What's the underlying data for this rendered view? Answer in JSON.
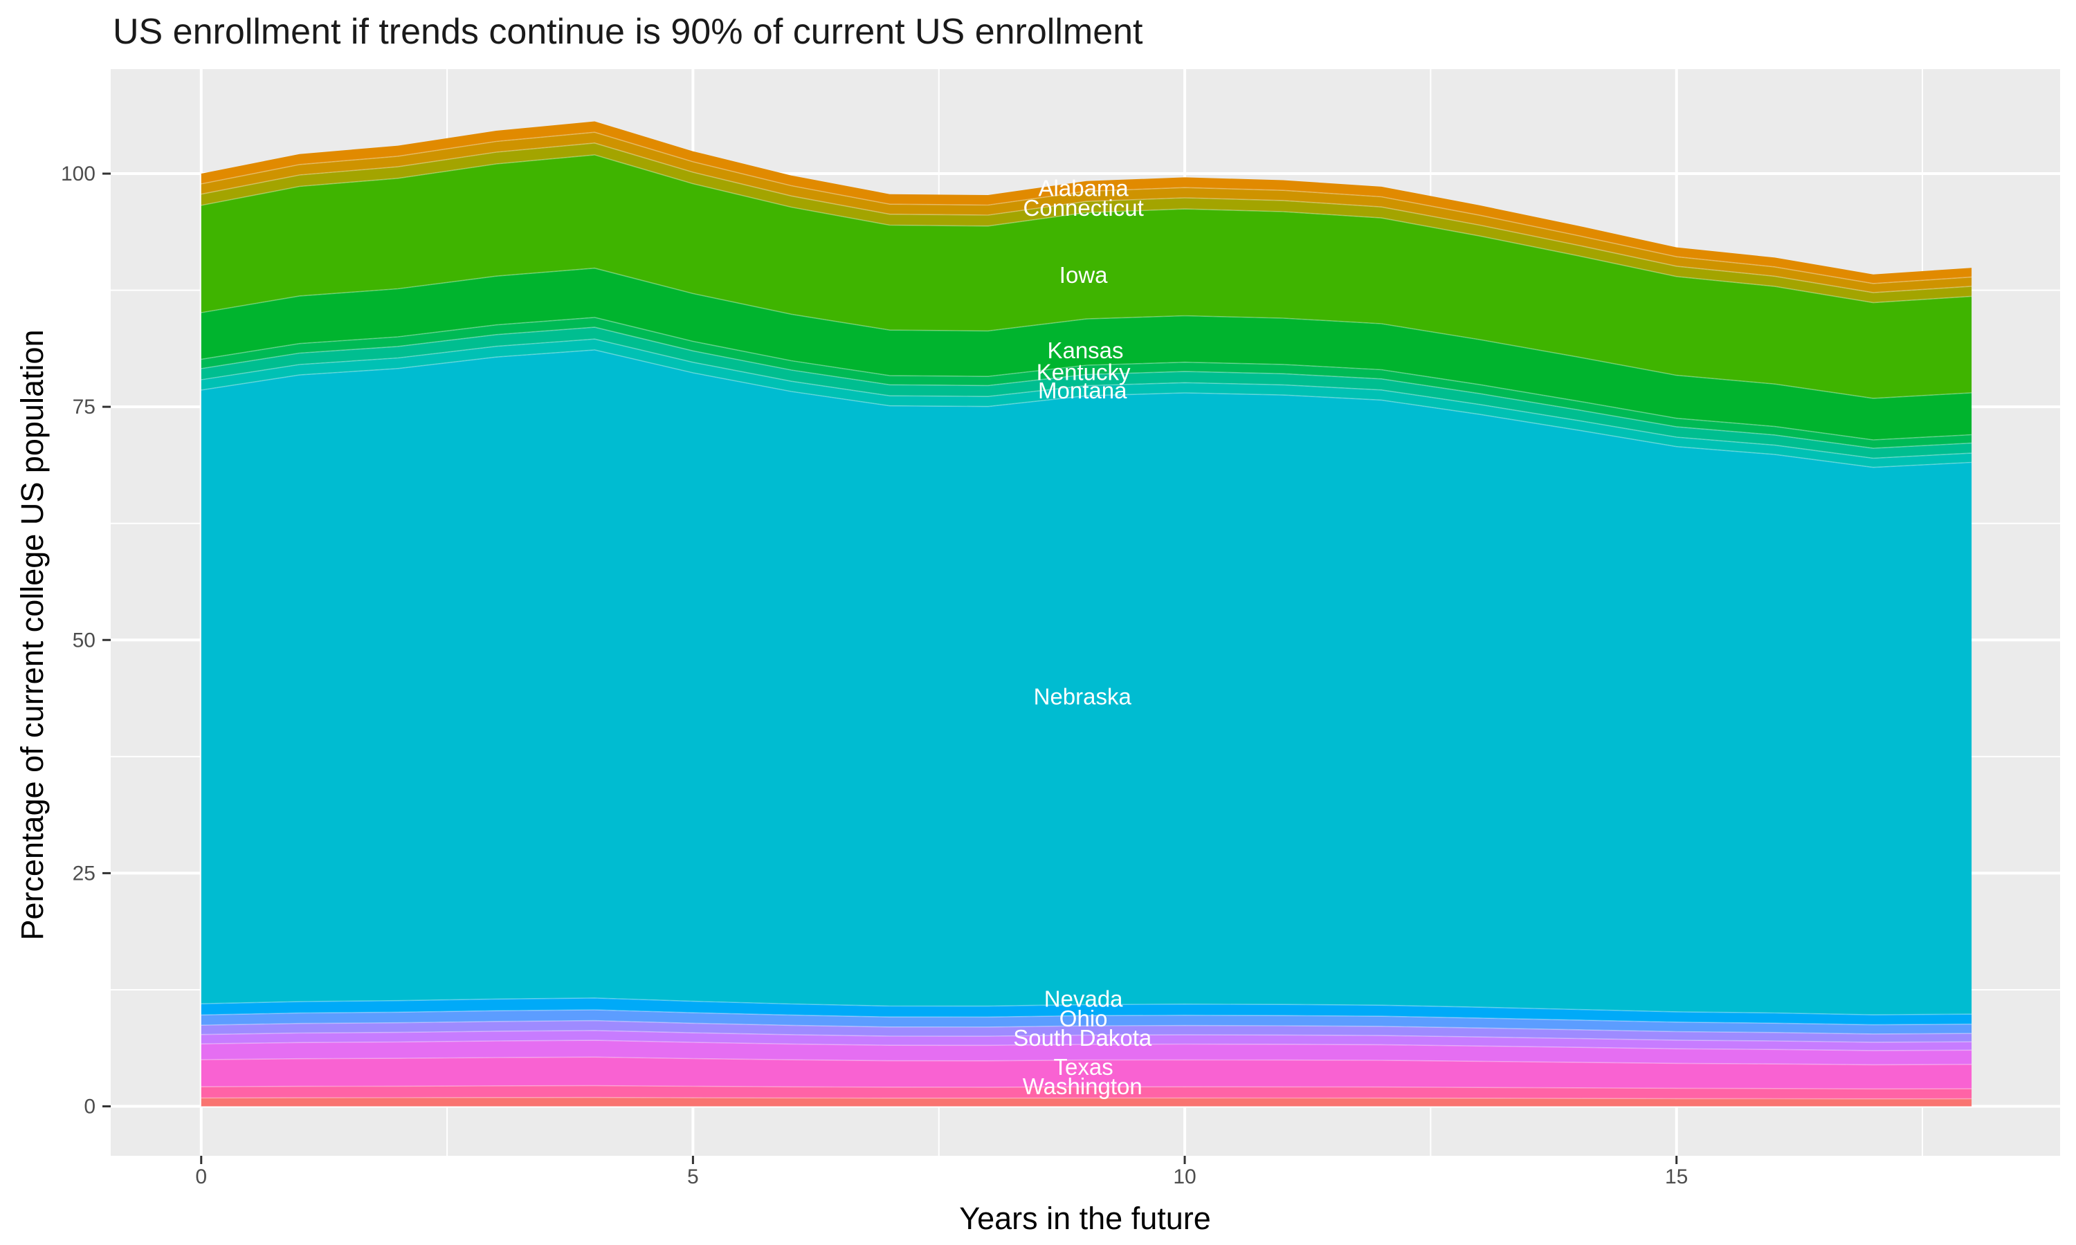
{
  "title": "US enrollment if trends continue is 90% of current US enrollment",
  "chart_data": {
    "type": "area",
    "stacked": true,
    "title": "US enrollment if trends continue is 90% of current US enrollment",
    "xlabel": "Years in the future",
    "ylabel": "Percentage of current college US population",
    "legend": "none",
    "grid": "on",
    "x_years": [
      0,
      1,
      2,
      3,
      4,
      5,
      6,
      7,
      8,
      9,
      10,
      11,
      12,
      13,
      14,
      15,
      16,
      17,
      18
    ],
    "totals_pct": [
      100,
      102.1,
      103,
      104.6,
      105.6,
      102.4,
      99.8,
      97.8,
      97.7,
      99.2,
      99.6,
      99.3,
      98.6,
      96.6,
      94.4,
      92.1,
      91,
      89.2,
      89.9
    ],
    "x_ticks": [
      "0",
      "5",
      "10",
      "15"
    ],
    "x_tick_values": [
      0,
      5,
      10,
      15
    ],
    "x_minor_values": [
      2.5,
      7.5,
      12.5,
      17.5
    ],
    "y_ticks": [
      "0",
      "25",
      "50",
      "75",
      "100"
    ],
    "y_tick_values": [
      0,
      25,
      50,
      75,
      100
    ],
    "y_minor_values": [
      12.5,
      37.5,
      62.5,
      87.5
    ],
    "xlim": [
      -0.92,
      18.9
    ],
    "ylim": [
      -5.3,
      111.2
    ],
    "series": [
      {
        "name": "Alabama",
        "color": "#E18A00",
        "share_pct": 1.1
      },
      {
        "name": "Connecticut",
        "color": "#CE9300",
        "share_pct": 1.1
      },
      {
        "name": "",
        "color": "#A3A400",
        "share_pct": 1.2
      },
      {
        "name": "Iowa",
        "color": "#3FB400",
        "share_pct": 11.5
      },
      {
        "name": "Kansas",
        "color": "#00B42E",
        "share_pct": 5.0
      },
      {
        "name": "Kentucky",
        "color": "#00BA55",
        "share_pct": 1.0
      },
      {
        "name": "",
        "color": "#00BE90",
        "share_pct": 1.2
      },
      {
        "name": "Montana",
        "color": "#00C1B4",
        "share_pct": 1.1
      },
      {
        "name": "Nebraska",
        "color": "#00BCD1",
        "share_pct": 65.8
      },
      {
        "name": "Nevada",
        "color": "#00AAF8",
        "share_pct": 1.2
      },
      {
        "name": "",
        "color": "#5C9DFF",
        "share_pct": 1.1
      },
      {
        "name": "Ohio",
        "color": "#9E8BFF",
        "share_pct": 1.0
      },
      {
        "name": "",
        "color": "#C77CFF",
        "share_pct": 1.0
      },
      {
        "name": "South Dakota",
        "color": "#E56EF2",
        "share_pct": 1.7
      },
      {
        "name": "Texas",
        "color": "#F962D2",
        "share_pct": 2.9
      },
      {
        "name": "Washington",
        "color": "#FF63A6",
        "share_pct": 1.2
      },
      {
        "name": "",
        "color": "#F97471",
        "share_pct": 0.9
      }
    ],
    "state_labels": [
      {
        "text": "Alabama",
        "x": 8.97,
        "y": 98.4
      },
      {
        "text": "Connecticut",
        "x": 8.97,
        "y": 96.3
      },
      {
        "text": "Iowa",
        "x": 8.97,
        "y": 89.1
      },
      {
        "text": "Kansas",
        "x": 8.99,
        "y": 81.0
      },
      {
        "text": "Kentucky",
        "x": 8.97,
        "y": 78.7
      },
      {
        "text": "Montana",
        "x": 8.96,
        "y": 76.7
      },
      {
        "text": "Nebraska",
        "x": 8.96,
        "y": 43.9
      },
      {
        "text": "Nevada",
        "x": 8.97,
        "y": 11.5
      },
      {
        "text": "Ohio",
        "x": 8.97,
        "y": 9.4
      },
      {
        "text": "South Dakota",
        "x": 8.96,
        "y": 7.3
      },
      {
        "text": "Texas",
        "x": 8.97,
        "y": 4.2
      },
      {
        "text": "Washington",
        "x": 8.96,
        "y": 2.1
      }
    ],
    "colors": {
      "panel_bg": "#EBEBEB",
      "grid": "#FFFFFF",
      "state_label": "#FFFFFF",
      "tick_label": "#4D4D4D",
      "tick_mark": "#333333",
      "axis_title": "#000000",
      "title": "#1A1A1A",
      "outer_bg": "#FFFFFF"
    }
  }
}
